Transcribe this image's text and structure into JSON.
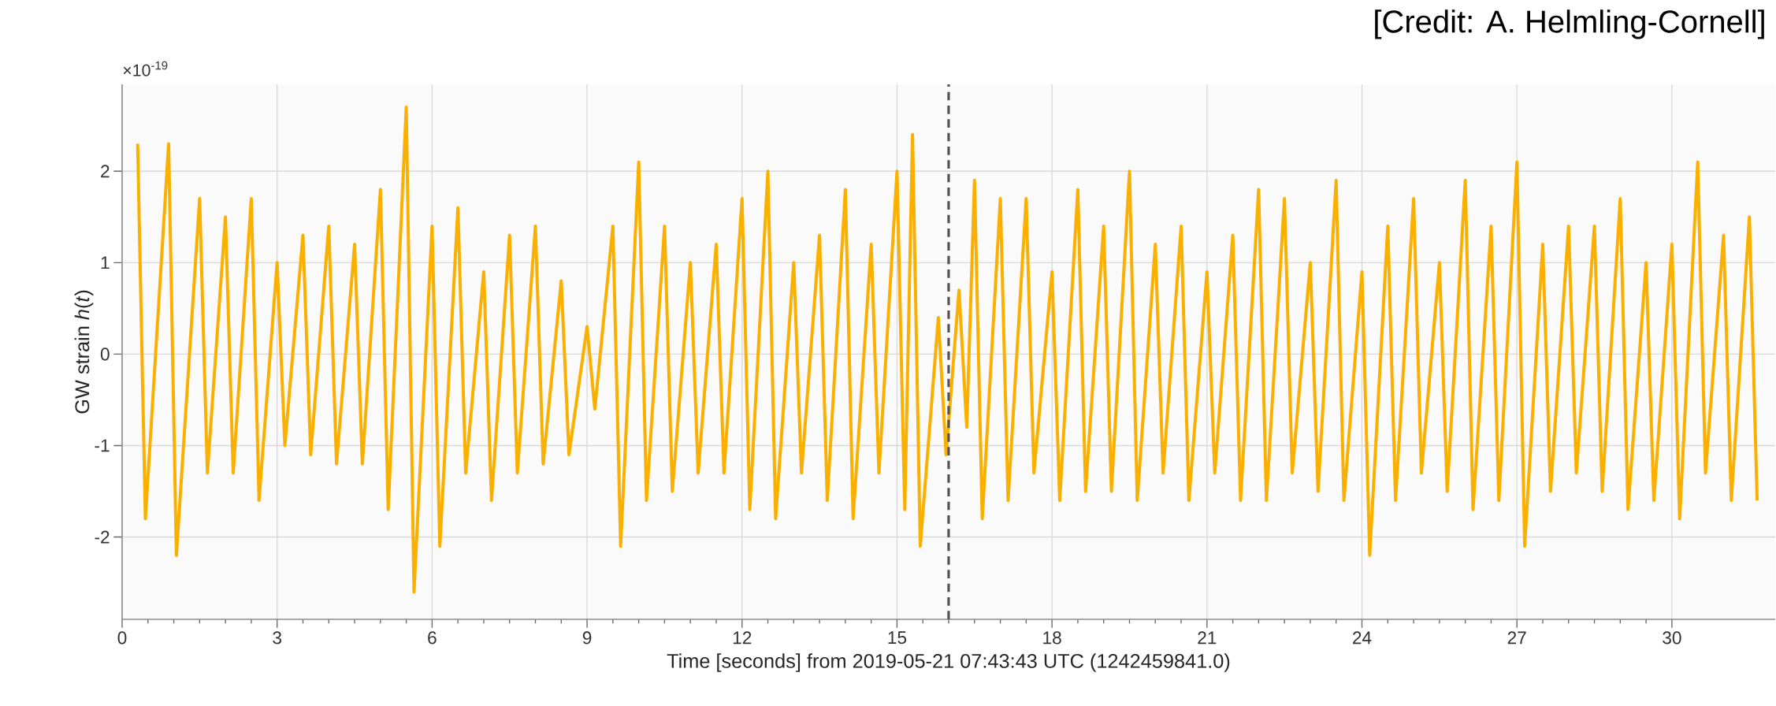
{
  "chart_data": {
    "type": "line",
    "xlabel": "Time [seconds] from 2019-05-21 07:43:43 UTC (1242459841.0)",
    "ylabel": "GW strain *h*(*t*)",
    "annotations": [
      "[Credit: A. Helmling-Cornell]",
      "×10$^{-19}$"
    ],
    "xlim": [
      0,
      32
    ],
    "ylim": [
      -2.9,
      2.95
    ],
    "xticks": [
      0,
      3,
      6,
      9,
      12,
      15,
      18,
      21,
      24,
      27,
      30
    ],
    "yticks": [
      -2,
      -1,
      0,
      1,
      2
    ],
    "grid": true,
    "ref_lines": [
      {
        "axis": "x",
        "value": 16,
        "color": "#555555",
        "line_style": "dashed"
      }
    ],
    "series": [
      {
        "color": "#fbb000",
        "x": [
          0.3,
          0.45,
          0.9,
          1.05,
          1.5,
          1.65,
          2,
          2.15,
          2.5,
          2.65,
          3,
          3.15,
          3.5,
          3.65,
          4,
          4.15,
          4.5,
          4.65,
          5,
          5.15,
          5.5,
          5.65,
          6,
          6.15,
          6.5,
          6.65,
          7,
          7.15,
          7.5,
          7.65,
          8,
          8.15,
          8.5,
          8.65,
          9,
          9.15,
          9.5,
          9.65,
          10,
          10.15,
          10.5,
          10.65,
          11,
          11.15,
          11.5,
          11.65,
          12,
          12.15,
          12.5,
          12.65,
          13,
          13.15,
          13.5,
          13.65,
          14,
          14.15,
          14.5,
          14.65,
          15,
          15.15,
          15.3,
          15.45,
          15.8,
          15.95,
          16.2,
          16.35,
          16.5,
          16.65,
          17,
          17.15,
          17.5,
          17.65,
          18,
          18.15,
          18.5,
          18.65,
          19,
          19.15,
          19.5,
          19.65,
          20,
          20.15,
          20.5,
          20.65,
          21,
          21.15,
          21.5,
          21.65,
          22,
          22.15,
          22.5,
          22.65,
          23,
          23.15,
          23.5,
          23.65,
          24,
          24.15,
          24.5,
          24.65,
          25,
          25.15,
          25.5,
          25.65,
          26,
          26.15,
          26.5,
          26.65,
          27,
          27.15,
          27.5,
          27.65,
          28,
          28.15,
          28.5,
          28.65,
          29,
          29.15,
          29.5,
          29.65,
          30,
          30.15,
          30.5,
          30.65,
          31,
          31.15,
          31.5,
          31.65
        ],
        "values": [
          2.3,
          -1.8,
          2.3,
          -2.2,
          1.7,
          -1.3,
          1.5,
          -1.3,
          1.7,
          -1.6,
          1.0,
          -1.0,
          1.3,
          -1.1,
          1.4,
          -1.2,
          1.2,
          -1.2,
          1.8,
          -1.7,
          2.7,
          -2.6,
          1.4,
          -2.1,
          1.6,
          -1.3,
          0.9,
          -1.6,
          1.3,
          -1.3,
          1.4,
          -1.2,
          0.8,
          -1.1,
          0.3,
          -0.6,
          1.4,
          -2.1,
          2.1,
          -1.6,
          1.4,
          -1.5,
          1.0,
          -1.3,
          1.2,
          -1.3,
          1.7,
          -1.7,
          2.0,
          -1.8,
          1.0,
          -1.3,
          1.3,
          -1.6,
          1.8,
          -1.8,
          1.2,
          -1.3,
          2.0,
          -1.7,
          2.4,
          -2.1,
          0.4,
          -1.1,
          0.7,
          -0.8,
          1.9,
          -1.8,
          1.7,
          -1.6,
          1.7,
          -1.3,
          0.9,
          -1.6,
          1.8,
          -1.5,
          1.4,
          -1.5,
          2.0,
          -1.6,
          1.2,
          -1.3,
          1.4,
          -1.6,
          0.9,
          -1.3,
          1.3,
          -1.6,
          1.8,
          -1.6,
          1.7,
          -1.3,
          1.0,
          -1.5,
          1.9,
          -1.6,
          0.9,
          -2.2,
          1.4,
          -1.6,
          1.7,
          -1.3,
          1.0,
          -1.5,
          1.9,
          -1.7,
          1.4,
          -1.6,
          2.1,
          -2.1,
          1.2,
          -1.5,
          1.4,
          -1.3,
          1.4,
          -1.5,
          1.7,
          -1.7,
          1.0,
          -1.6,
          1.2,
          -1.8,
          2.1,
          -1.3,
          1.3,
          -1.6,
          1.5,
          -1.6
        ]
      }
    ]
  }
}
